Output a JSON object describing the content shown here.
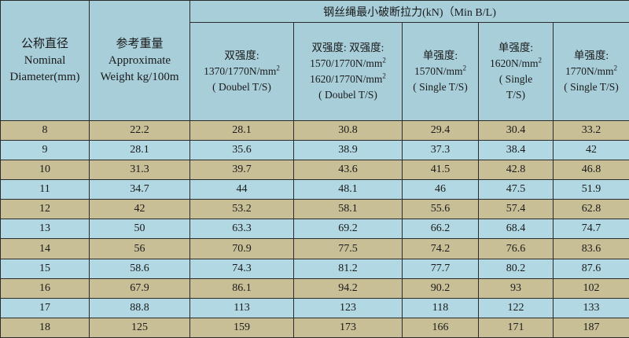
{
  "header": {
    "nominal": {
      "zh": "公称直径",
      "en1": "Nominal",
      "en2": "Diameter(mm)"
    },
    "weight": {
      "zh": "参考重量",
      "en1": "Approximate",
      "en2": "Weight kg/100m"
    },
    "group_title": "钢丝绳最小破断拉力(kN)（Min B/L)",
    "columns": [
      {
        "zh": "双强度:",
        "grade": "1370/1770N/mm",
        "type": "( Doubel T/S)"
      },
      {
        "zh": "双强度: 双强度:",
        "grade": "1570/1770N/mm",
        "grade2": "1620/1770N/mm",
        "type": "( Doubel T/S)"
      },
      {
        "zh": "单强度:",
        "grade": "1570N/mm",
        "type": "( Single T/S)"
      },
      {
        "zh": "单强度:",
        "grade": "1620N/mm",
        "type1": "( Single",
        "type2": "T/S)"
      },
      {
        "zh": "单强度:",
        "grade": "1770N/mm",
        "type": "( Single T/S)"
      }
    ],
    "superscript": "2"
  },
  "rows": [
    [
      "8",
      "22.2",
      "28.1",
      "30.8",
      "29.4",
      "30.4",
      "33.2"
    ],
    [
      "9",
      "28.1",
      "35.6",
      "38.9",
      "37.3",
      "38.4",
      "42"
    ],
    [
      "10",
      "31.3",
      "39.7",
      "43.6",
      "41.5",
      "42.8",
      "46.8"
    ],
    [
      "11",
      "34.7",
      "44",
      "48.1",
      "46",
      "47.5",
      "51.9"
    ],
    [
      "12",
      "42",
      "53.2",
      "58.1",
      "55.6",
      "57.4",
      "62.8"
    ],
    [
      "13",
      "50",
      "63.3",
      "69.2",
      "66.2",
      "68.4",
      "74.7"
    ],
    [
      "14",
      "56",
      "70.9",
      "77.5",
      "74.2",
      "76.6",
      "83.6"
    ],
    [
      "15",
      "58.6",
      "74.3",
      "81.2",
      "77.7",
      "80.2",
      "87.6"
    ],
    [
      "16",
      "67.9",
      "86.1",
      "94.2",
      "90.2",
      "93",
      "102"
    ],
    [
      "17",
      "88.8",
      "113",
      "123",
      "118",
      "122",
      "133"
    ],
    [
      "18",
      "125",
      "159",
      "173",
      "166",
      "171",
      "187"
    ]
  ],
  "colors": {
    "header_bg": "#a8ced9",
    "row_tan": "#c9bf97",
    "row_blue": "#b2d9e3",
    "border": "#2b2b2b"
  }
}
